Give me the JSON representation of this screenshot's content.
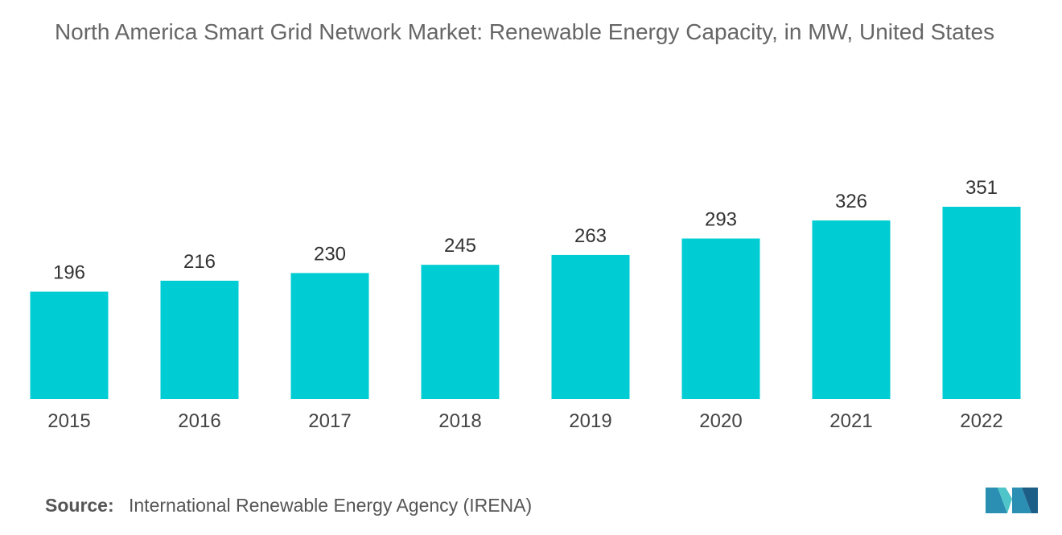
{
  "chart_data": {
    "type": "bar",
    "title": "North America Smart Grid Network Market: Renewable Energy Capacity, in MW, United States",
    "categories": [
      "2015",
      "2016",
      "2017",
      "2018",
      "2019",
      "2020",
      "2021",
      "2022"
    ],
    "values": [
      196,
      216,
      230,
      245,
      263,
      293,
      326,
      351
    ],
    "color": "#00cdd3",
    "source_label": "Source:",
    "source": "International Renewable Energy Agency (IRENA)"
  }
}
